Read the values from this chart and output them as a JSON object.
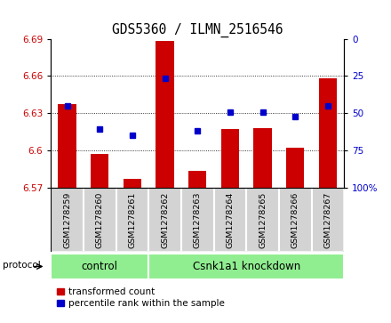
{
  "title": "GDS5360 / ILMN_2516546",
  "samples": [
    "GSM1278259",
    "GSM1278260",
    "GSM1278261",
    "GSM1278262",
    "GSM1278263",
    "GSM1278264",
    "GSM1278265",
    "GSM1278266",
    "GSM1278267"
  ],
  "red_values": [
    6.637,
    6.597,
    6.577,
    6.688,
    6.583,
    6.617,
    6.618,
    6.602,
    6.658
  ],
  "blue_values": [
    6.636,
    6.617,
    6.612,
    6.658,
    6.616,
    6.631,
    6.631,
    6.627,
    6.636
  ],
  "y_min": 6.57,
  "y_max": 6.69,
  "y_ticks": [
    6.57,
    6.6,
    6.63,
    6.66,
    6.69
  ],
  "y_right_ticks": [
    0,
    25,
    50,
    75,
    100
  ],
  "bar_base": 6.57,
  "red_color": "#cc0000",
  "blue_color": "#0000cc",
  "control_label": "control",
  "knockdown_label": "Csnk1a1 knockdown",
  "control_count": 3,
  "knockdown_count": 6,
  "protocol_label": "protocol",
  "legend_red": "transformed count",
  "legend_blue": "percentile rank within the sample",
  "green_bg": "#90EE90",
  "gray_bg": "#d3d3d3",
  "grid_lines": [
    6.6,
    6.63,
    6.66
  ]
}
